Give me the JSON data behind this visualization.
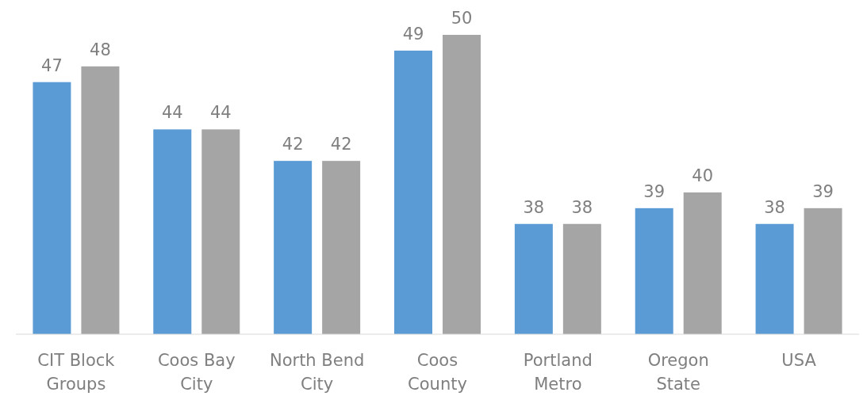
{
  "chart_data": {
    "type": "bar",
    "categories": [
      "CIT Block Groups",
      "Coos Bay City",
      "North Bend City",
      "Coos County",
      "Portland Metro",
      "Oregon State",
      "USA"
    ],
    "series": [
      {
        "color": "#5b9bd5",
        "values": [
          47,
          44,
          42,
          49,
          38,
          39,
          38
        ]
      },
      {
        "color": "#a5a5a5",
        "values": [
          48,
          44,
          42,
          50,
          38,
          40,
          39
        ]
      }
    ],
    "ylim": [
      31,
      50
    ],
    "data_labels": true,
    "tick_labels": "x"
  }
}
